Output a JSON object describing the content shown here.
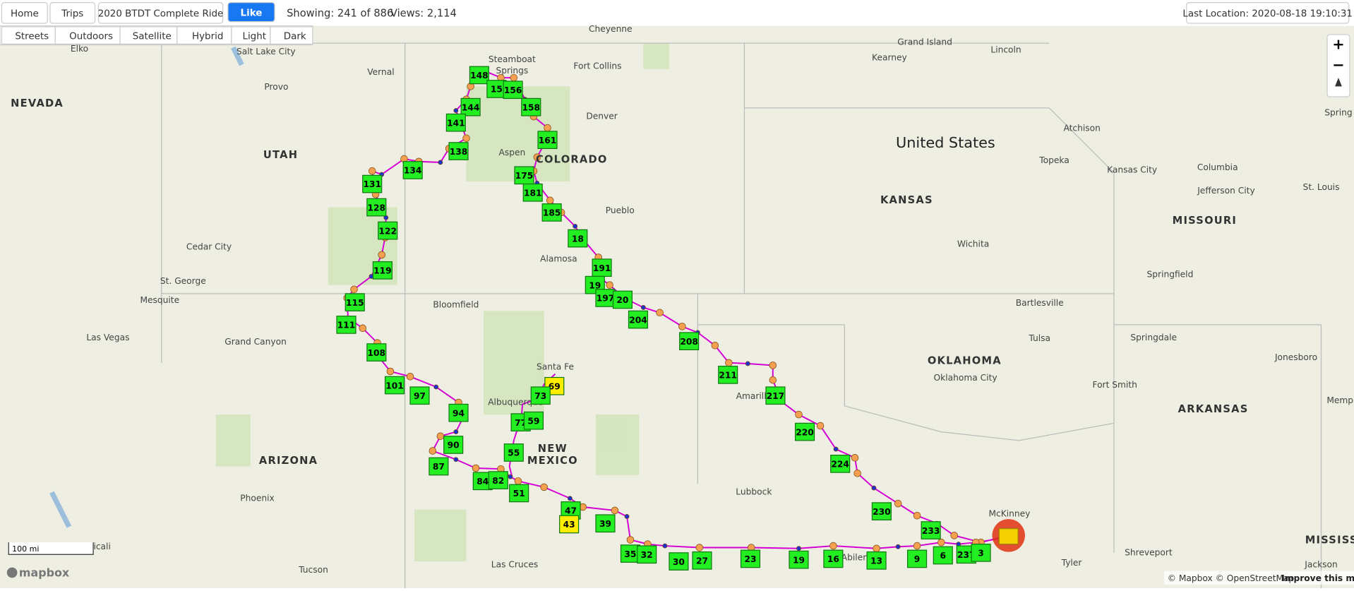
{
  "toolbar": {
    "home": "Home",
    "trips": "Trips",
    "trip_select": "2020 BTDT Complete Ride",
    "like": "Like",
    "showing": "Showing: 241 of 886",
    "views": "Views: 2,114",
    "last_location": "Last Location: 2020-08-18 19:10:31"
  },
  "layers": [
    "Streets",
    "Outdoors",
    "Satellite",
    "Hybrid",
    "Light",
    "Dark"
  ],
  "map": {
    "places": [
      "Elko",
      "Salt Lake City",
      "Cheyenne",
      "Grand Island",
      "Kearney",
      "Lincoln",
      "NEVADA",
      "Vernal",
      "Provo",
      "Steamboat",
      "Springs",
      "Fort Collins",
      "Denver",
      "UTAH",
      "Aspen",
      "COLORADO",
      "United States",
      "Atchison",
      "Topeka",
      "Kansas City",
      "Columbia",
      "St. Louis",
      "Jefferson City",
      "KANSAS",
      "Pueblo",
      "MISSOURI",
      "Wichita",
      "Cedar City",
      "Alamosa",
      "Springfield",
      "St. George",
      "Mesquite",
      "Bloomfield",
      "Bartlesville",
      "Las Vegas",
      "Grand Canyon",
      "Tulsa",
      "Springdale",
      "Jonesboro",
      "OKLAHOMA",
      "Oklahoma City",
      "Santa Fe",
      "Fort Smith",
      "Amarillo",
      "Albuquerque",
      "Memph",
      "ARKANSAS",
      "NEW",
      "MEXICO",
      "ARIZONA",
      "Lubbock",
      "Phoenix",
      "McKinney",
      "Shreveport",
      "Mexicali",
      "MISSISS",
      "Abilene",
      "Tyler",
      "Tucson",
      "Las Cruces",
      "Jackson",
      "Spring"
    ],
    "markers": [
      "148",
      "15",
      "156",
      "158",
      "144",
      "141",
      "161",
      "138",
      "134",
      "131",
      "175",
      "181",
      "185",
      "128",
      "122",
      "18",
      "119",
      "191",
      "19",
      "197",
      "20",
      "115",
      "111",
      "204",
      "208",
      "108",
      "211",
      "101",
      "217",
      "97",
      "69",
      "73",
      "94",
      "77",
      "59",
      "220",
      "90",
      "55",
      "224",
      "87",
      "84",
      "82",
      "51",
      "230",
      "47",
      "43",
      "39",
      "233",
      "237",
      "35",
      "32",
      "30",
      "27",
      "23",
      "19",
      "16",
      "13",
      "9",
      "6",
      "3"
    ],
    "scale": "100 mi",
    "logo": "mapbox",
    "attribution": "© Mapbox © OpenStreetMap",
    "improve": "Improve this map",
    "zoom_in": "+",
    "zoom_out": "−"
  }
}
